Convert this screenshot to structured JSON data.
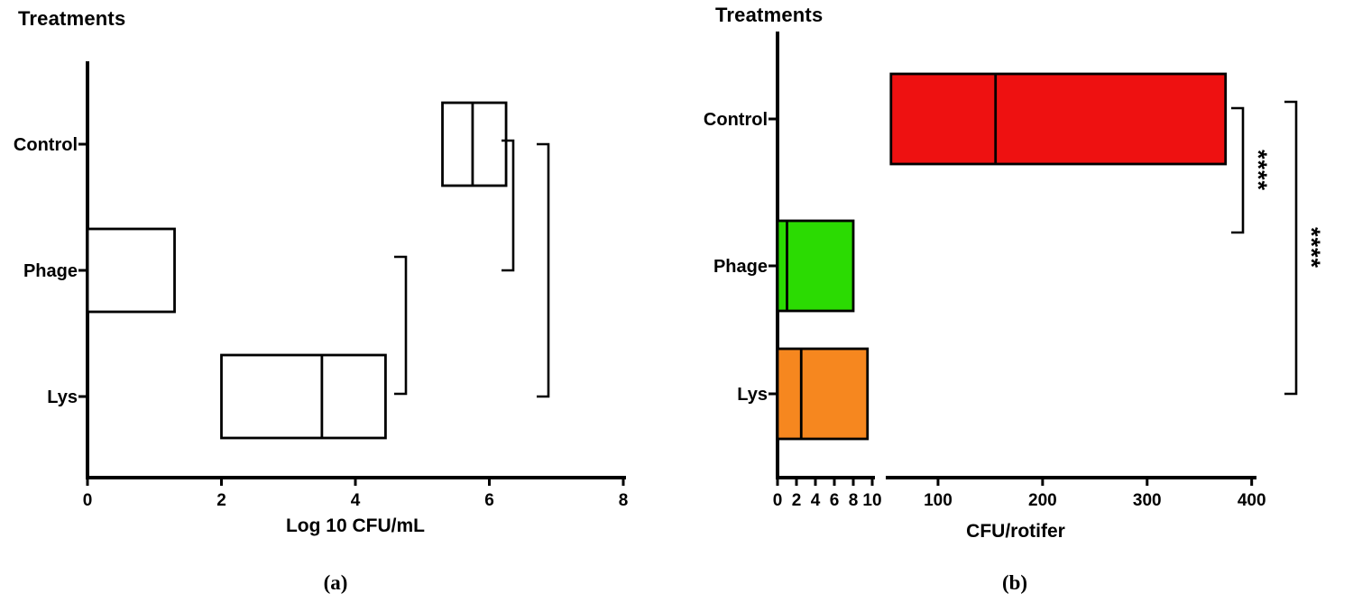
{
  "figure": {
    "background": "#ffffff",
    "captions": {
      "a": "(a)",
      "b": "(b)"
    }
  },
  "colors": {
    "axis": "#000000",
    "panel_a_box_fill": "#ffffff",
    "panel_b_control_fill": "#ee1111",
    "panel_b_phage_fill": "#2bdb02",
    "panel_b_lys_fill": "#f6871f"
  },
  "chart_data": [
    {
      "type": "boxplot",
      "orientation": "horizontal",
      "panel": "a",
      "title": "Treatments",
      "xlabel": "Log 10 CFU/mL",
      "axis_break": false,
      "axis_segments": [
        {
          "range": [
            0,
            8
          ],
          "ticks": [
            0,
            2,
            4,
            6,
            8
          ]
        }
      ],
      "categories": [
        "Control",
        "Phage",
        "Lys"
      ],
      "boxes": [
        {
          "category": "Control",
          "q1": 5.3,
          "median": 5.75,
          "q3": 6.25,
          "fill": "#ffffff"
        },
        {
          "category": "Phage",
          "q1": 0,
          "median": 0,
          "q3": 1.3,
          "fill": "#ffffff"
        },
        {
          "category": "Lys",
          "q1": 2.0,
          "median": 3.5,
          "q3": 4.45,
          "fill": "#ffffff"
        }
      ],
      "comparisons": [
        {
          "between": [
            "Phage",
            "Lys"
          ],
          "label": ""
        },
        {
          "between": [
            "Control",
            "Phage"
          ],
          "label": ""
        },
        {
          "between": [
            "Control",
            "Lys"
          ],
          "label": ""
        }
      ]
    },
    {
      "type": "boxplot",
      "orientation": "horizontal",
      "panel": "b",
      "title": "Treatments",
      "xlabel": "CFU/rotifer",
      "axis_break": true,
      "axis_segments": [
        {
          "range": [
            0,
            10
          ],
          "ticks": [
            0,
            2,
            4,
            6,
            8,
            10
          ]
        },
        {
          "range": [
            50,
            402
          ],
          "ticks": [
            100,
            200,
            300,
            400
          ]
        }
      ],
      "categories": [
        "Control",
        "Phage",
        "Lys"
      ],
      "boxes": [
        {
          "category": "Control",
          "q1": 55,
          "median": 155,
          "q3": 375,
          "fill": "#ee1111"
        },
        {
          "category": "Phage",
          "q1": 0,
          "median": 1,
          "q3": 8,
          "fill": "#2bdb02"
        },
        {
          "category": "Lys",
          "q1": 0,
          "median": 2.5,
          "q3": 9.5,
          "fill": "#f6871f"
        }
      ],
      "comparisons": [
        {
          "between": [
            "Control",
            "Phage"
          ],
          "label": "****"
        },
        {
          "between": [
            "Control",
            "Lys"
          ],
          "label": "****"
        }
      ]
    }
  ]
}
